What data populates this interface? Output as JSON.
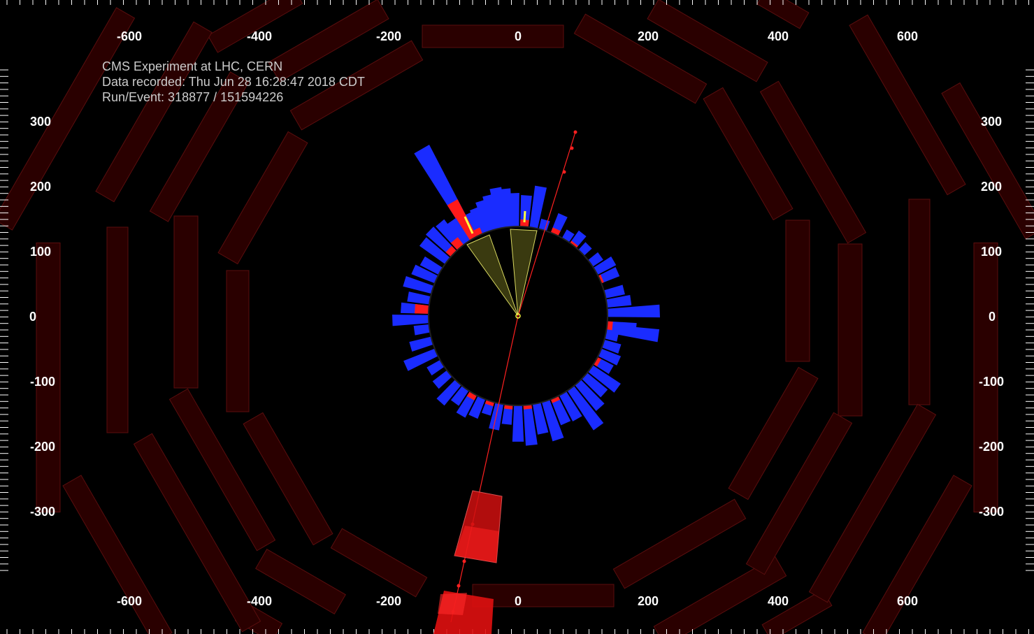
{
  "event_info": {
    "experiment": "CMS Experiment at LHC, CERN",
    "recorded": "Data recorded: Thu Jun 28 16:28:47 2018 CDT",
    "run_event": "Run/Event: 318877 / 151594226"
  },
  "axes": {
    "x_ticks": [
      "-600",
      "-400",
      "-200",
      "0",
      "200",
      "400",
      "600"
    ],
    "y_ticks": [
      "300",
      "200",
      "100",
      "0",
      "-100",
      "-200",
      "-300"
    ]
  },
  "colors": {
    "background": "#000000",
    "muon_chamber": "#2a0000",
    "muon_chamber_edge": "#5a0e0e",
    "hcal_tower": "#1a2cff",
    "ecal_tower": "#ff1a1a",
    "jet_cone": "#3a3a10",
    "jet_cone_edge": "#d8d860",
    "track": "#ff2020",
    "muon_hit_box": "#d01010",
    "tick": "#ffffff"
  }
}
